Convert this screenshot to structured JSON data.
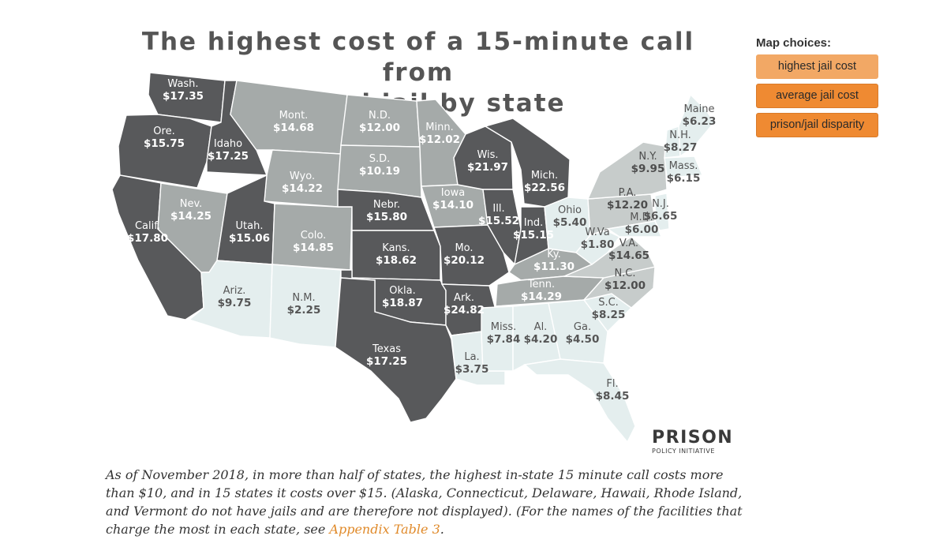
{
  "map": {
    "title_line1": "The highest cost of a 15-minute call from",
    "title_line2": "a local jail by state",
    "tone_colors": {
      "dark": "#58595b",
      "mid": "#a5aaa9",
      "light": "#c7cccb",
      "pale": "#e4eeee"
    },
    "states": [
      {
        "id": "wa",
        "name": "Wash.",
        "value": "$17.35",
        "tone": "dark"
      },
      {
        "id": "or",
        "name": "Ore.",
        "value": "$15.75",
        "tone": "dark"
      },
      {
        "id": "ca",
        "name": "Calif.",
        "value": "$17.80",
        "tone": "dark"
      },
      {
        "id": "id",
        "name": "Idaho",
        "value": "$17.25",
        "tone": "dark"
      },
      {
        "id": "nv",
        "name": "Nev.",
        "value": "$14.25",
        "tone": "mid"
      },
      {
        "id": "mt",
        "name": "Mont.",
        "value": "$14.68",
        "tone": "mid"
      },
      {
        "id": "wy",
        "name": "Wyo.",
        "value": "$14.22",
        "tone": "mid"
      },
      {
        "id": "ut",
        "name": "Utah.",
        "value": "$15.06",
        "tone": "dark"
      },
      {
        "id": "co",
        "name": "Colo.",
        "value": "$14.85",
        "tone": "mid"
      },
      {
        "id": "az",
        "name": "Ariz.",
        "value": "$9.75",
        "tone": "pale"
      },
      {
        "id": "nm",
        "name": "N.M.",
        "value": "$2.25",
        "tone": "pale"
      },
      {
        "id": "nd",
        "name": "N.D.",
        "value": "$12.00",
        "tone": "mid"
      },
      {
        "id": "sd",
        "name": "S.D.",
        "value": "$10.19",
        "tone": "mid"
      },
      {
        "id": "ne",
        "name": "Nebr.",
        "value": "$15.80",
        "tone": "dark"
      },
      {
        "id": "ks",
        "name": "Kans.",
        "value": "$18.62",
        "tone": "dark"
      },
      {
        "id": "ok",
        "name": "Okla.",
        "value": "$18.87",
        "tone": "dark"
      },
      {
        "id": "tx",
        "name": "Texas",
        "value": "$17.25",
        "tone": "dark"
      },
      {
        "id": "mn",
        "name": "Minn.",
        "value": "$12.02",
        "tone": "mid"
      },
      {
        "id": "ia",
        "name": "Iowa",
        "value": "$14.10",
        "tone": "mid"
      },
      {
        "id": "mo",
        "name": "Mo.",
        "value": "$20.12",
        "tone": "dark"
      },
      {
        "id": "ar",
        "name": "Ark.",
        "value": "$24.82",
        "tone": "dark"
      },
      {
        "id": "la",
        "name": "La.",
        "value": "$3.75",
        "tone": "pale"
      },
      {
        "id": "wi",
        "name": "Wis.",
        "value": "$21.97",
        "tone": "dark"
      },
      {
        "id": "il",
        "name": "Ill.",
        "value": "$15.52",
        "tone": "dark"
      },
      {
        "id": "mi",
        "name": "Mich.",
        "value": "$22.56",
        "tone": "dark"
      },
      {
        "id": "in",
        "name": "Ind.",
        "value": "$15.15",
        "tone": "dark"
      },
      {
        "id": "oh",
        "name": "Ohio",
        "value": "$5.40",
        "tone": "pale"
      },
      {
        "id": "ky",
        "name": "Ky.",
        "value": "$11.30",
        "tone": "mid"
      },
      {
        "id": "tn",
        "name": "Tenn.",
        "value": "$14.29",
        "tone": "mid"
      },
      {
        "id": "ms",
        "name": "Miss.",
        "value": "$7.84",
        "tone": "pale"
      },
      {
        "id": "al",
        "name": "Al.",
        "value": "$4.20",
        "tone": "pale"
      },
      {
        "id": "ga",
        "name": "Ga.",
        "value": "$4.50",
        "tone": "pale"
      },
      {
        "id": "fl",
        "name": "Fl.",
        "value": "$8.45",
        "tone": "pale"
      },
      {
        "id": "sc",
        "name": "S.C.",
        "value": "$8.25",
        "tone": "pale"
      },
      {
        "id": "nc",
        "name": "N.C.",
        "value": "$12.00",
        "tone": "light"
      },
      {
        "id": "va",
        "name": "V.A.",
        "value": "$14.65",
        "tone": "light"
      },
      {
        "id": "wv",
        "name": "W.Va",
        "value": "$1.80",
        "tone": "pale"
      },
      {
        "id": "pa",
        "name": "P.A.",
        "value": "$12.20",
        "tone": "light"
      },
      {
        "id": "ny",
        "name": "N.Y.",
        "value": "$9.95",
        "tone": "light"
      },
      {
        "id": "md",
        "name": "M.D.",
        "value": "$6.00",
        "tone": "pale"
      },
      {
        "id": "nj",
        "name": "N.J.",
        "value": "$6.65",
        "tone": "pale"
      },
      {
        "id": "ma",
        "name": "Mass.",
        "value": "$6.15",
        "tone": "pale"
      },
      {
        "id": "nh",
        "name": "N.H.",
        "value": "$8.27",
        "tone": "pale"
      },
      {
        "id": "me",
        "name": "Maine",
        "value": "$6.23",
        "tone": "pale"
      }
    ]
  },
  "logo": {
    "main": "PRISON",
    "sub": "POLICY INITIATIVE"
  },
  "caption": {
    "text": "As of November 2018, in more than half of states, the highest in-state 15 minute call costs more than $10, and in 15 states it costs over $15. (Alaska, Connecticut, Delaware, Hawaii, Rhode Island, and Vermont do not have jails and are therefore not displayed). (For the names of the facilities that charge the most in each state, see ",
    "link": "Appendix Table 3",
    "end": "."
  },
  "choices": {
    "heading": "Map choices:",
    "buttons": [
      "highest jail cost",
      "average jail cost",
      "prison/jail disparity"
    ]
  }
}
